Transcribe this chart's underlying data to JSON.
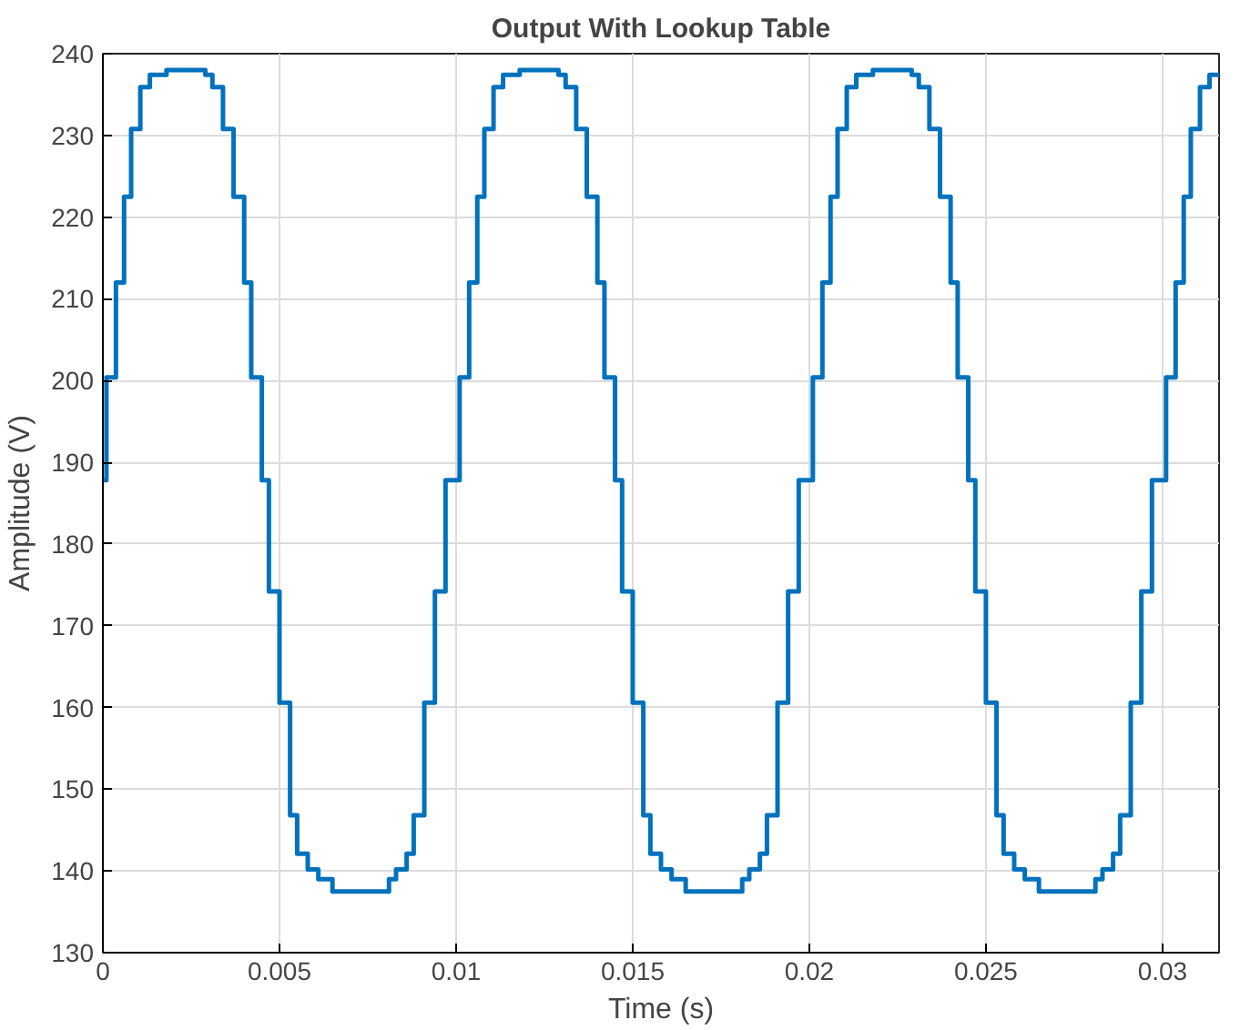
{
  "chart_data": {
    "type": "step",
    "title": "Output With Lookup Table",
    "xlabel": "Time (s)",
    "ylabel": "Amplitude (V)",
    "x": [
      0,
      0.0001,
      0.00037,
      0.0006,
      0.0008,
      0.00106,
      0.00133,
      0.0018,
      0.0029,
      0.0031,
      0.0034,
      0.0037,
      0.004,
      0.0042,
      0.0045,
      0.0047,
      0.005,
      0.0053,
      0.0055,
      0.0058,
      0.0061,
      0.0065,
      0.0081,
      0.0083,
      0.0086,
      0.0088,
      0.0091,
      0.0094,
      0.0097,
      0.0101,
      0.01037,
      0.0106,
      0.0108,
      0.01106,
      0.01133,
      0.0118,
      0.0129,
      0.0131,
      0.0134,
      0.0137,
      0.014,
      0.0142,
      0.0145,
      0.0147,
      0.015,
      0.0153,
      0.0155,
      0.0158,
      0.0161,
      0.0165,
      0.0181,
      0.0183,
      0.0186,
      0.0188,
      0.0191,
      0.0194,
      0.0197,
      0.0201,
      0.02037,
      0.0206,
      0.0208,
      0.02106,
      0.02133,
      0.0218,
      0.0229,
      0.0231,
      0.0234,
      0.0237,
      0.024,
      0.0242,
      0.0245,
      0.0247,
      0.025,
      0.0253,
      0.0255,
      0.0258,
      0.0261,
      0.0265,
      0.0281,
      0.0283,
      0.0286,
      0.0288,
      0.0291,
      0.0294,
      0.0297,
      0.0301,
      0.03037,
      0.0306,
      0.0308,
      0.03106,
      0.03133,
      0.0316
    ],
    "values": [
      187.8,
      200.4,
      212,
      222.5,
      230.8,
      235.9,
      237.4,
      238,
      237.4,
      235.9,
      230.8,
      222.5,
      212,
      200.4,
      187.8,
      174.2,
      160.6,
      146.8,
      142.1,
      140.2,
      139,
      137.5,
      139,
      140.2,
      142.1,
      146.8,
      160.6,
      174.2,
      187.8,
      200.4,
      212,
      222.5,
      230.8,
      235.9,
      237.4,
      238,
      237.4,
      235.9,
      230.8,
      222.5,
      212,
      200.4,
      187.8,
      174.2,
      160.6,
      146.8,
      142.1,
      140.2,
      139,
      137.5,
      139,
      140.2,
      142.1,
      146.8,
      160.6,
      174.2,
      187.8,
      200.4,
      212,
      222.5,
      230.8,
      235.9,
      237.4,
      238,
      237.4,
      235.9,
      230.8,
      222.5,
      212,
      200.4,
      187.8,
      174.2,
      160.6,
      146.8,
      142.1,
      140.2,
      139,
      137.5,
      139,
      140.2,
      142.1,
      146.8,
      160.6,
      174.2,
      187.8,
      200.4,
      212,
      222.5,
      230.8,
      235.9,
      237.4,
      237.4
    ],
    "color": "#0072bd",
    "xlim": [
      0,
      0.0316
    ],
    "xticks": [
      0,
      0.005,
      0.01,
      0.015,
      0.02,
      0.025,
      0.03
    ],
    "ylim": [
      130,
      240
    ],
    "yticks": [
      130,
      140,
      150,
      160,
      170,
      180,
      190,
      200,
      210,
      220,
      230,
      240
    ],
    "grid": true
  }
}
